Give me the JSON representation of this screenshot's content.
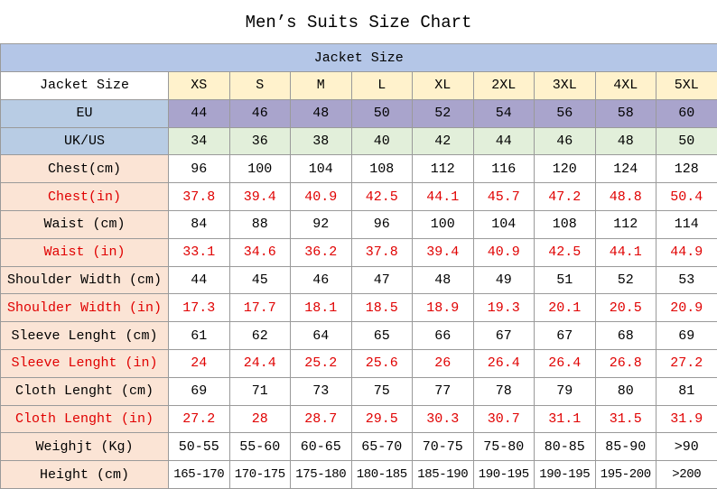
{
  "title": "Men’s Suits Size Chart",
  "table": {
    "section": "Jacket Size",
    "rows": [
      [
        "Jacket Size",
        "XS",
        "S",
        "M",
        "L",
        "XL",
        "2XL",
        "3XL",
        "4XL",
        "5XL"
      ],
      [
        "EU",
        "44",
        "46",
        "48",
        "50",
        "52",
        "54",
        "56",
        "58",
        "60"
      ],
      [
        "UK/US",
        "34",
        "36",
        "38",
        "40",
        "42",
        "44",
        "46",
        "48",
        "50"
      ],
      [
        "Chest(cm)",
        "96",
        "100",
        "104",
        "108",
        "112",
        "116",
        "120",
        "124",
        "128"
      ],
      [
        "Chest(in)",
        "37.8",
        "39.4",
        "40.9",
        "42.5",
        "44.1",
        "45.7",
        "47.2",
        "48.8",
        "50.4"
      ],
      [
        "Waist (cm)",
        "84",
        "88",
        "92",
        "96",
        "100",
        "104",
        "108",
        "112",
        "114"
      ],
      [
        "Waist (in)",
        "33.1",
        "34.6",
        "36.2",
        "37.8",
        "39.4",
        "40.9",
        "42.5",
        "44.1",
        "44.9"
      ],
      [
        "Shoulder Width (cm)",
        "44",
        "45",
        "46",
        "47",
        "48",
        "49",
        "51",
        "52",
        "53"
      ],
      [
        "Shoulder Width (in)",
        "17.3",
        "17.7",
        "18.1",
        "18.5",
        "18.9",
        "19.3",
        "20.1",
        "20.5",
        "20.9"
      ],
      [
        "Sleeve Lenght (cm)",
        "61",
        "62",
        "64",
        "65",
        "66",
        "67",
        "67",
        "68",
        "69"
      ],
      [
        "Sleeve Lenght (in)",
        "24",
        "24.4",
        "25.2",
        "25.6",
        "26",
        "26.4",
        "26.4",
        "26.8",
        "27.2"
      ],
      [
        "Cloth Lenght (cm)",
        "69",
        "71",
        "73",
        "75",
        "77",
        "78",
        "79",
        "80",
        "81"
      ],
      [
        "Cloth Lenght (in)",
        "27.2",
        "28",
        "28.7",
        "29.5",
        "30.3",
        "30.7",
        "31.1",
        "31.5",
        "31.9"
      ],
      [
        "Weighjt (Kg)",
        "50-55",
        "55-60",
        "60-65",
        "65-70",
        "70-75",
        "75-80",
        "80-85",
        "85-90",
        ">90"
      ],
      [
        "Height (cm)",
        "165-170",
        "170-175",
        "175-180",
        "180-185",
        "185-190",
        "190-195",
        "190-195",
        "195-200",
        ">200"
      ]
    ]
  }
}
